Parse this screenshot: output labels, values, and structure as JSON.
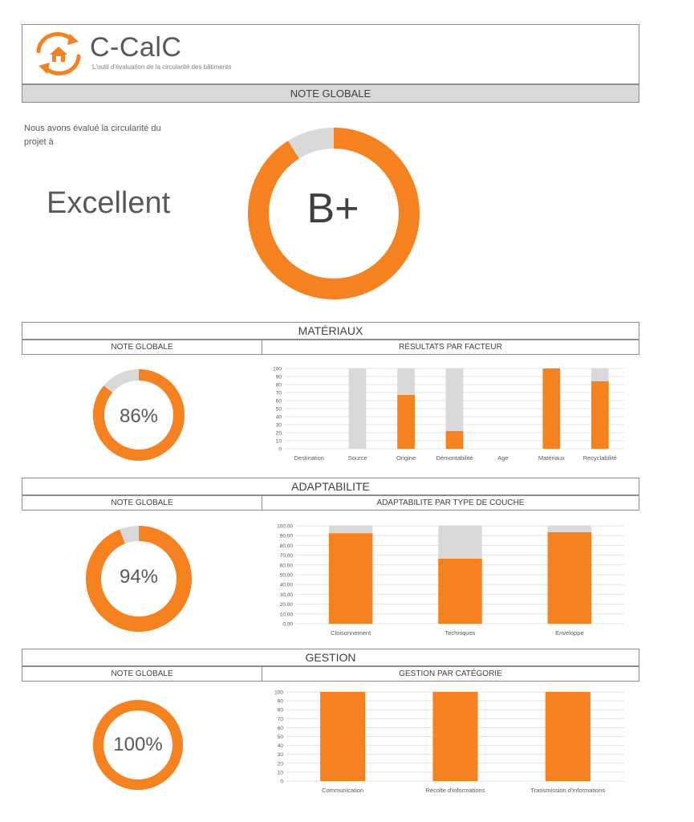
{
  "header": {
    "app_name": "C-CalC",
    "tagline": "L'outil d'évaluation de la circularité des bâtiments",
    "band_title": "NOTE GLOBALE"
  },
  "summary": {
    "intro": "Nous avons évalué la circularité du projet à",
    "rating": "Excellent",
    "grade": "B+",
    "score_fraction": 0.91
  },
  "colors": {
    "accent": "#f5821f",
    "track": "#d9d9d9",
    "band": "#d9d9d9",
    "text": "#595959"
  },
  "icons": [
    "house-recycle-logo-icon"
  ],
  "materiaux": {
    "title": "MATÉRIAUX",
    "left_header": "NOTE GLOBALE",
    "right_header": "RÉSULTATS PAR FACTEUR",
    "percent_label": "86%",
    "score_fraction": 0.86
  },
  "adaptabilite": {
    "title": "ADAPTABILITE",
    "left_header": "NOTE GLOBALE",
    "right_header": "ADAPTABILITE PAR TYPE DE COUCHE",
    "percent_label": "94%",
    "score_fraction": 0.94
  },
  "gestion": {
    "title": "GESTION",
    "left_header": "NOTE GLOBALE",
    "right_header": "GESTION PAR CATÉGORIE",
    "percent_label": "100%",
    "score_fraction": 1.0
  },
  "chart_data": [
    {
      "type": "bar",
      "stacked": true,
      "categories": [
        "Destination",
        "Source",
        "Origine",
        "Démontabilité",
        "Age",
        "Matériaux",
        "Recyclabilité"
      ],
      "series": [
        {
          "values": [
            0,
            0,
            67,
            22,
            0,
            100,
            84
          ],
          "color": "#f5821f"
        },
        {
          "values": [
            0,
            100,
            33,
            78,
            0,
            0,
            16
          ],
          "color": "#d9d9d9"
        }
      ],
      "ylim": [
        0,
        100
      ],
      "yticks": [
        "0",
        "10",
        "20",
        "30",
        "40",
        "50",
        "60",
        "70",
        "80",
        "90",
        "100"
      ],
      "grid": true
    },
    {
      "type": "bar",
      "stacked": true,
      "categories": [
        "Cloisonnement",
        "Techniques",
        "Enveloppe"
      ],
      "series": [
        {
          "values": [
            92.5,
            66.5,
            93.5
          ],
          "color": "#f5821f"
        },
        {
          "values": [
            7.5,
            33.5,
            6.5
          ],
          "color": "#d9d9d9"
        }
      ],
      "ylim": [
        0,
        100
      ],
      "yticks": [
        "0,00",
        "10,00",
        "20,00",
        "30,00",
        "40,00",
        "50,00",
        "60,00",
        "70,00",
        "80,00",
        "90,00",
        "100,00"
      ],
      "grid": true
    },
    {
      "type": "bar",
      "categories": [
        "Communication",
        "Récolte d'informations",
        "Transmission d'informations"
      ],
      "series": [
        {
          "values": [
            100,
            100,
            100
          ],
          "color": "#f5821f"
        }
      ],
      "ylim": [
        0,
        100
      ],
      "yticks": [
        "0",
        "10",
        "20",
        "30",
        "40",
        "50",
        "60",
        "70",
        "80",
        "90",
        "100"
      ],
      "grid": true
    }
  ]
}
